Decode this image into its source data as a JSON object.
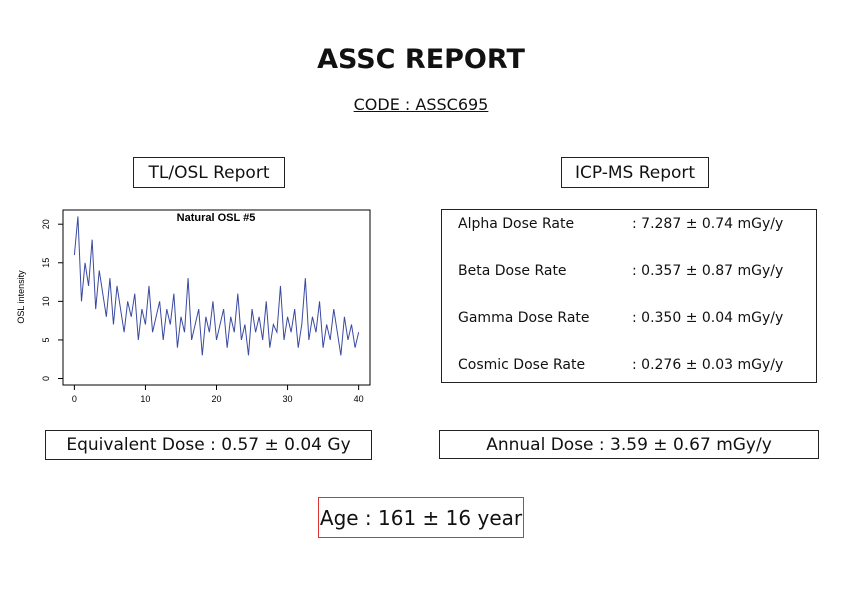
{
  "header": {
    "title": "ASSC REPORT",
    "code": "CODE : ASSC695"
  },
  "left": {
    "title": "TL/OSL Report",
    "result": "Equivalent Dose : 0.57 ± 0.04 Gy"
  },
  "chart_data": {
    "type": "line",
    "title": "Natural OSL #5",
    "y_label": "OSL intensity",
    "color": "#3a4aa0",
    "x": [
      0,
      0.5,
      1,
      1.5,
      2,
      2.5,
      3,
      3.5,
      4,
      4.5,
      5,
      5.5,
      6,
      6.5,
      7,
      7.5,
      8,
      8.5,
      9,
      9.5,
      10,
      10.5,
      11,
      11.5,
      12,
      12.5,
      13,
      13.5,
      14,
      14.5,
      15,
      15.5,
      16,
      16.5,
      17,
      17.5,
      18,
      18.5,
      19,
      19.5,
      20,
      20.5,
      21,
      21.5,
      22,
      22.5,
      23,
      23.5,
      24,
      24.5,
      25,
      25.5,
      26,
      26.5,
      27,
      27.5,
      28,
      28.5,
      29,
      29.5,
      30,
      30.5,
      31,
      31.5,
      32,
      32.5,
      33,
      33.5,
      34,
      34.5,
      35,
      35.5,
      36,
      36.5,
      37,
      37.5,
      38,
      38.5,
      39,
      39.5,
      40
    ],
    "values": [
      16,
      21,
      10,
      15,
      12,
      18,
      9,
      14,
      11,
      8,
      13,
      7,
      12,
      9,
      6,
      10,
      8,
      11,
      5,
      9,
      7,
      12,
      6,
      8,
      10,
      5,
      9,
      7,
      11,
      4,
      8,
      6,
      13,
      5,
      7,
      9,
      3,
      8,
      6,
      10,
      5,
      7,
      9,
      4,
      8,
      6,
      11,
      5,
      7,
      3,
      9,
      6,
      8,
      5,
      10,
      4,
      7,
      6,
      12,
      5,
      8,
      6,
      9,
      4,
      7,
      13,
      5,
      8,
      6,
      10,
      4,
      7,
      5,
      9,
      6,
      3,
      8,
      5,
      7,
      4,
      6
    ],
    "xlim": [
      -1.6,
      41.6
    ],
    "ylim": [
      -0.84,
      21.84
    ],
    "xticks": [
      0,
      10,
      20,
      30,
      40
    ],
    "yticks": [
      0,
      5,
      10,
      15,
      20
    ]
  },
  "right": {
    "title": "ICP-MS Report",
    "rows": [
      {
        "label": "Alpha Dose Rate",
        "value": ": 7.287 ± 0.74 mGy/y"
      },
      {
        "label": "Beta Dose Rate",
        "value": ": 0.357 ± 0.87 mGy/y"
      },
      {
        "label": "Gamma Dose Rate",
        "value": ": 0.350 ± 0.04 mGy/y"
      },
      {
        "label": "Cosmic Dose Rate",
        "value": ": 0.276 ± 0.03 mGy/y"
      }
    ],
    "result": "Annual Dose : 3.59 ± 0.67 mGy/y"
  },
  "age": "Age : 161 ± 16 year"
}
